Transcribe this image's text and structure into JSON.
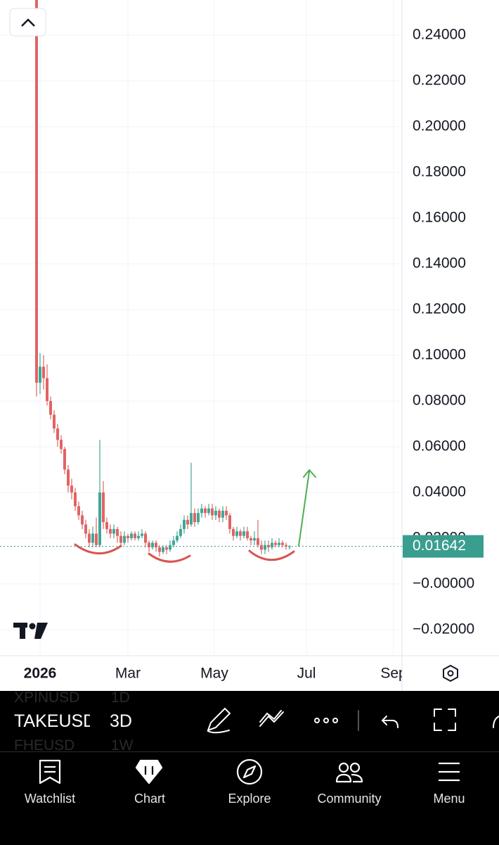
{
  "chart_data": {
    "type": "candlestick",
    "up_color": "#3fa896",
    "down_color": "#e06464",
    "open": [
      0.26,
      0.088,
      0.095,
      0.09,
      0.08,
      0.074,
      0.068,
      0.063,
      0.059,
      0.05,
      0.043,
      0.04,
      0.034,
      0.03,
      0.026,
      0.022,
      0.018,
      0.022,
      0.017,
      0.04,
      0.027,
      0.024,
      0.022,
      0.024,
      0.021,
      0.018,
      0.021,
      0.02,
      0.022,
      0.02,
      0.021,
      0.022,
      0.018,
      0.016,
      0.018,
      0.016,
      0.014,
      0.016,
      0.015,
      0.017,
      0.019,
      0.021,
      0.024,
      0.028,
      0.026,
      0.031,
      0.027,
      0.031,
      0.033,
      0.031,
      0.033,
      0.03,
      0.032,
      0.029,
      0.032,
      0.03,
      0.024,
      0.021,
      0.023,
      0.021,
      0.023,
      0.02,
      0.019,
      0.02,
      0.017,
      0.015,
      0.017,
      0.016,
      0.018,
      0.017,
      0.018,
      0.017,
      0.0164
    ],
    "high": [
      0.27,
      0.101,
      0.1,
      0.096,
      0.082,
      0.076,
      0.07,
      0.065,
      0.06,
      0.052,
      0.046,
      0.042,
      0.036,
      0.032,
      0.028,
      0.024,
      0.025,
      0.029,
      0.063,
      0.045,
      0.029,
      0.026,
      0.026,
      0.025,
      0.023,
      0.023,
      0.022,
      0.023,
      0.023,
      0.023,
      0.024,
      0.023,
      0.019,
      0.019,
      0.019,
      0.017,
      0.017,
      0.017,
      0.019,
      0.021,
      0.023,
      0.026,
      0.03,
      0.03,
      0.053,
      0.033,
      0.033,
      0.035,
      0.034,
      0.035,
      0.035,
      0.034,
      0.033,
      0.034,
      0.034,
      0.031,
      0.025,
      0.025,
      0.024,
      0.025,
      0.025,
      0.021,
      0.023,
      0.028,
      0.019,
      0.019,
      0.019,
      0.02,
      0.019,
      0.02,
      0.019,
      0.018,
      0.017
    ],
    "low": [
      0.082,
      0.083,
      0.085,
      0.078,
      0.072,
      0.066,
      0.06,
      0.057,
      0.048,
      0.04,
      0.037,
      0.032,
      0.028,
      0.024,
      0.02,
      0.016,
      0.016,
      0.016,
      0.016,
      0.024,
      0.022,
      0.02,
      0.02,
      0.018,
      0.016,
      0.017,
      0.018,
      0.019,
      0.019,
      0.019,
      0.02,
      0.016,
      0.014,
      0.015,
      0.014,
      0.012,
      0.013,
      0.013,
      0.014,
      0.016,
      0.018,
      0.02,
      0.022,
      0.024,
      0.025,
      0.025,
      0.026,
      0.029,
      0.029,
      0.03,
      0.028,
      0.028,
      0.027,
      0.027,
      0.028,
      0.022,
      0.019,
      0.02,
      0.019,
      0.02,
      0.019,
      0.017,
      0.017,
      0.016,
      0.013,
      0.013,
      0.014,
      0.015,
      0.016,
      0.016,
      0.016,
      0.015,
      0.015
    ],
    "close": [
      0.088,
      0.095,
      0.09,
      0.08,
      0.074,
      0.068,
      0.063,
      0.059,
      0.05,
      0.043,
      0.04,
      0.034,
      0.03,
      0.026,
      0.022,
      0.018,
      0.022,
      0.017,
      0.04,
      0.027,
      0.024,
      0.022,
      0.024,
      0.021,
      0.018,
      0.021,
      0.02,
      0.022,
      0.02,
      0.021,
      0.022,
      0.018,
      0.016,
      0.018,
      0.016,
      0.014,
      0.016,
      0.015,
      0.017,
      0.019,
      0.021,
      0.024,
      0.028,
      0.026,
      0.031,
      0.027,
      0.031,
      0.033,
      0.031,
      0.033,
      0.03,
      0.032,
      0.029,
      0.032,
      0.03,
      0.024,
      0.021,
      0.023,
      0.021,
      0.023,
      0.02,
      0.019,
      0.02,
      0.017,
      0.015,
      0.017,
      0.016,
      0.018,
      0.017,
      0.018,
      0.017,
      0.0164,
      0.01642
    ],
    "xlim": [
      -10.4,
      104
    ],
    "xticks": [
      {
        "value": 1,
        "label": "2026"
      },
      {
        "value": 26,
        "label": "Mar"
      },
      {
        "value": 50.6,
        "label": "May"
      },
      {
        "value": 76.8,
        "label": "Jul"
      },
      {
        "value": 101.6,
        "label": "Sep"
      }
    ],
    "ylim": [
      -0.0308,
      0.2554
    ],
    "yticks": [
      {
        "value": 0.24,
        "label": "0.24000"
      },
      {
        "value": 0.22,
        "label": "0.22000"
      },
      {
        "value": 0.2,
        "label": "0.20000"
      },
      {
        "value": 0.18,
        "label": "0.18000"
      },
      {
        "value": 0.16,
        "label": "0.16000"
      },
      {
        "value": 0.14,
        "label": "0.14000"
      },
      {
        "value": 0.12,
        "label": "0.12000"
      },
      {
        "value": 0.1,
        "label": "0.10000"
      },
      {
        "value": 0.08,
        "label": "0.08000"
      },
      {
        "value": 0.06,
        "label": "0.06000"
      },
      {
        "value": 0.04,
        "label": "0.04000"
      },
      {
        "value": 0.02,
        "label": "0.02000"
      },
      {
        "value": 0,
        "label": "−0.00000"
      },
      {
        "value": -0.02,
        "label": "−0.02000"
      }
    ],
    "grid": true,
    "last_price": {
      "value": 0.01642,
      "label": "0.01642",
      "color": "#3a9e8f"
    }
  },
  "toolbar": {
    "symbol": "TAKEUSD",
    "interval": "3D",
    "ghost_rows": [
      [
        "XPINUSD",
        "1D"
      ],
      [
        "FHEUSD",
        "1W"
      ]
    ]
  },
  "nav": [
    "Watchlist",
    "Chart",
    "Explore",
    "Community",
    "Menu"
  ]
}
